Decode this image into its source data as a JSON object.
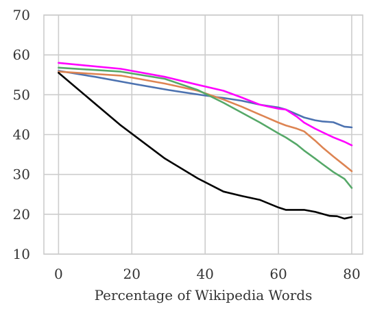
{
  "chart_data": {
    "type": "line",
    "title": "",
    "xlabel": "Percentage of Wikipedia Words",
    "ylabel": "",
    "xlim": [
      -4,
      83
    ],
    "ylim": [
      10,
      70
    ],
    "xticks": [
      0,
      20,
      40,
      60,
      80
    ],
    "yticks": [
      10,
      20,
      30,
      40,
      50,
      60,
      70
    ],
    "grid": true,
    "legend": "none",
    "series": [
      {
        "color": "#4c72b0",
        "x": [
          0,
          10,
          20,
          30,
          40,
          45,
          50,
          55,
          60,
          62,
          64,
          67,
          70,
          72,
          75,
          78,
          80
        ],
        "y": [
          56,
          54.5,
          52.8,
          51.2,
          49.8,
          49.2,
          48.5,
          47.5,
          46.8,
          46.3,
          45.5,
          44.3,
          43.6,
          43.3,
          43.1,
          42.0,
          41.8
        ]
      },
      {
        "color": "#dd8452",
        "x": [
          0,
          17,
          29,
          38,
          45,
          50,
          55,
          60,
          62,
          65,
          67,
          70,
          72,
          75,
          78,
          80
        ],
        "y": [
          55.8,
          54.8,
          52.8,
          51.0,
          48.8,
          47.0,
          45.0,
          43.0,
          42.3,
          41.5,
          40.8,
          38.5,
          36.8,
          34.5,
          32.3,
          30.8
        ]
      },
      {
        "color": "#55a868",
        "x": [
          0,
          17,
          29,
          38,
          45,
          50,
          55,
          60,
          62,
          65,
          67,
          70,
          72,
          75,
          78,
          80
        ],
        "y": [
          56.8,
          55.8,
          54.0,
          51.2,
          48.0,
          45.5,
          43.0,
          40.3,
          39.3,
          37.5,
          36.0,
          34.0,
          32.6,
          30.6,
          28.9,
          26.6
        ]
      },
      {
        "color": "#ff00ff",
        "x": [
          0,
          17,
          29,
          38,
          45,
          50,
          55,
          60,
          62,
          65,
          67,
          70,
          72,
          75,
          78,
          80
        ],
        "y": [
          58.0,
          56.5,
          54.5,
          52.5,
          51.0,
          49.3,
          47.5,
          46.5,
          46.3,
          44.5,
          43.0,
          41.5,
          40.6,
          39.3,
          38.2,
          37.3
        ]
      },
      {
        "color": "#000000",
        "x": [
          0,
          17,
          29,
          38,
          45,
          50,
          55,
          60,
          62,
          67,
          70,
          72,
          74,
          76,
          78,
          80
        ],
        "y": [
          55.5,
          42.3,
          34.0,
          29.0,
          25.7,
          24.6,
          23.6,
          21.7,
          21.1,
          21.1,
          20.6,
          20.1,
          19.6,
          19.5,
          18.9,
          19.3
        ]
      }
    ]
  }
}
